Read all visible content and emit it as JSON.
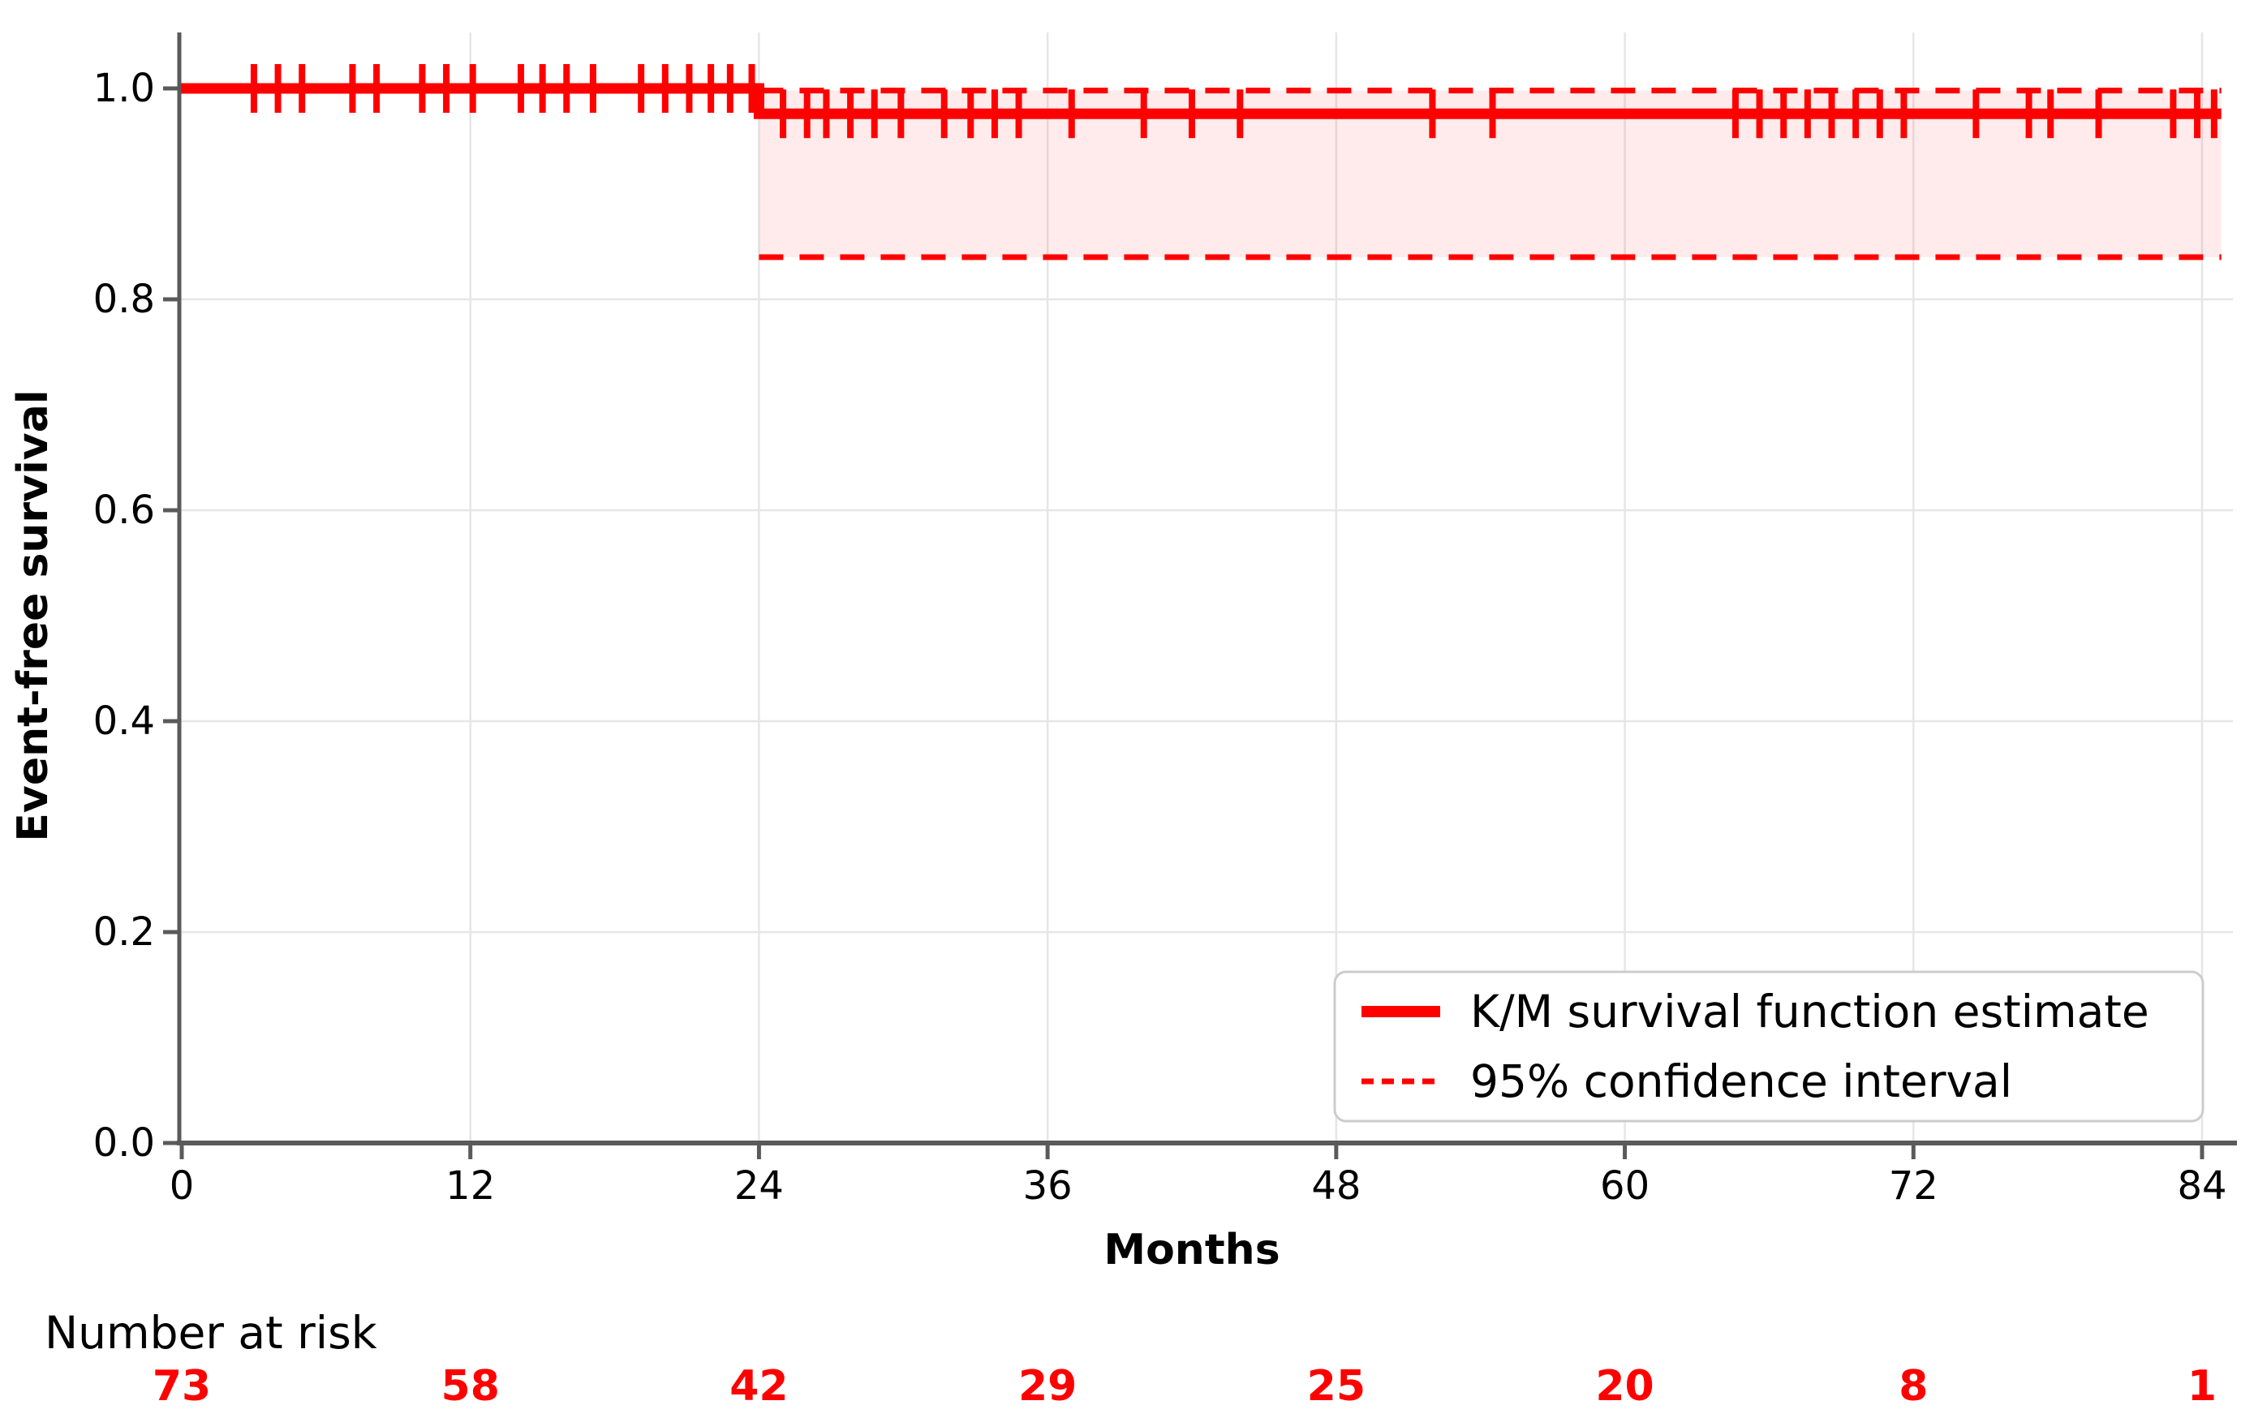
{
  "chart_data": {
    "type": "line",
    "subtype": "kaplan-meier-step",
    "title": "",
    "xlabel": "Months",
    "ylabel": "Event-free survival",
    "xlim": [
      0,
      85.5
    ],
    "ylim": [
      0.0,
      1.0
    ],
    "grid": true,
    "legend_position": "lower right",
    "xticks": [
      0,
      12,
      24,
      36,
      48,
      60,
      72,
      84
    ],
    "xtick_labels": [
      "0",
      "12",
      "24",
      "36",
      "48",
      "60",
      "72",
      "84"
    ],
    "yticks": [
      0.0,
      0.2,
      0.4,
      0.6,
      0.8,
      1.0
    ],
    "ytick_labels": [
      "0.0",
      "0.2",
      "0.4",
      "0.6",
      "0.8",
      "1.0"
    ],
    "series": [
      {
        "name": "K/M survival function estimate",
        "style": "solid",
        "color": "#ff0000",
        "step_points": [
          [
            0,
            1.0
          ],
          [
            24,
            1.0
          ],
          [
            24,
            0.976
          ],
          [
            84.8,
            0.976
          ]
        ]
      },
      {
        "name": "95% confidence interval",
        "style": "dashed",
        "color": "#ff0000",
        "x_start": 24,
        "x_end": 84.8,
        "upper": 0.998,
        "lower": 0.84,
        "fill_alpha": 0.08
      }
    ],
    "censor_marks": [
      {
        "survival": 1.0,
        "months": [
          3,
          4,
          5,
          7.1,
          8.1,
          10,
          11,
          12.1,
          14.1,
          15,
          16,
          17.1,
          19.1,
          20.1,
          21.1,
          22,
          22.8,
          23.7
        ]
      },
      {
        "survival": 0.976,
        "months": [
          25,
          26,
          26.8,
          27.8,
          28.8,
          29.9,
          31.7,
          32.8,
          33.8,
          34.8,
          37,
          40,
          42,
          44,
          52,
          54.5,
          64.6,
          65.6,
          66.6,
          67.6,
          68.6,
          69.6,
          70.6,
          71.6,
          74.6,
          76.8,
          77.7,
          79.7,
          82.8,
          83.8,
          84.5
        ]
      }
    ],
    "number_at_risk": {
      "label": "Number at risk",
      "months": [
        0,
        12,
        24,
        36,
        48,
        60,
        72,
        84
      ],
      "values": [
        "73",
        "58",
        "42",
        "29",
        "25",
        "20",
        "8",
        "1"
      ]
    }
  },
  "legend": {
    "items": [
      {
        "label": "K/M survival function estimate",
        "style": "solid"
      },
      {
        "label": "95% confidence interval",
        "style": "dashed"
      }
    ]
  },
  "colors": {
    "curve": "#ff0000",
    "ci_line": "#ff0000",
    "ci_fill": "#ff0000",
    "risk_numbers": "#ff0000",
    "grid": "#e6e6e6",
    "spine": "#5a5a5a",
    "text": "#000000",
    "legend_border": "#cccccc",
    "background": "#ffffff"
  }
}
